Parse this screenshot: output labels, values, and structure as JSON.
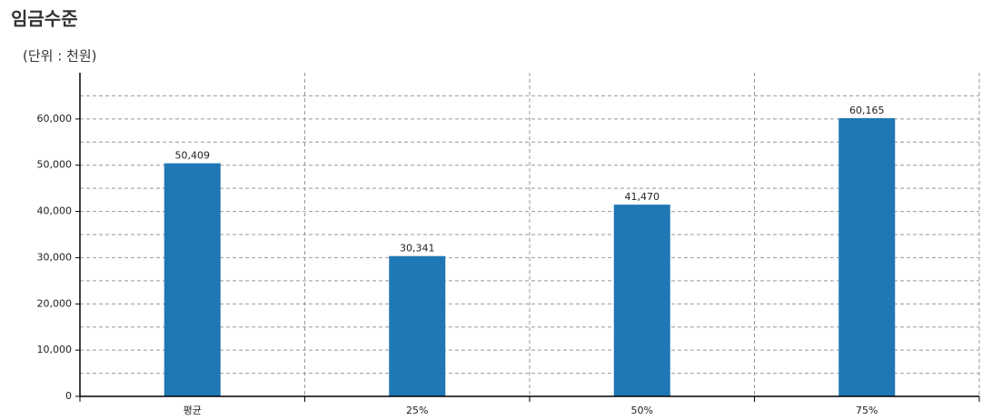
{
  "chart_data": {
    "type": "bar",
    "title": "임금수준",
    "subtitle": "(단위 : 천원)",
    "categories": [
      "평균",
      "25%",
      "50%",
      "75%"
    ],
    "values": [
      50409,
      30341,
      41470,
      60165
    ],
    "value_labels": [
      "50,409",
      "30,341",
      "41,470",
      "60,165"
    ],
    "color": "#1f77b4",
    "ylim": [
      0,
      70000
    ],
    "yticks": [
      0,
      {
        "value": 10000,
        "label": "10,000"
      },
      {
        "value": 20000,
        "label": "20,000"
      },
      {
        "value": 30000,
        "label": "30,000"
      },
      {
        "value": 40000,
        "label": "40,000"
      },
      {
        "value": 50000,
        "label": "50,000"
      },
      {
        "value": 60000,
        "label": "60,000"
      }
    ],
    "y_minor_ticks": [
      5000,
      15000,
      25000,
      35000,
      45000,
      55000,
      65000
    ],
    "grid": true
  }
}
